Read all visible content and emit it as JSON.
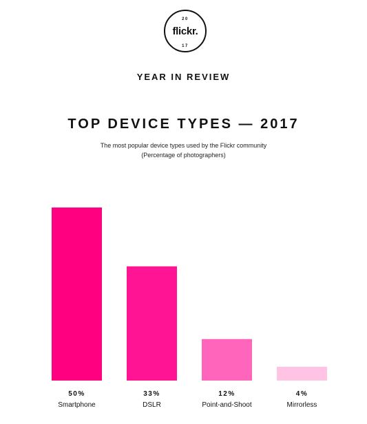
{
  "logo": {
    "year_top": "20",
    "wordmark": "flickr.",
    "year_bottom": "17"
  },
  "header": {
    "eyebrow": "YEAR IN REVIEW",
    "title": "TOP DEVICE TYPES — 2017",
    "subtitle_line1": "The most popular device types used by the Flickr community",
    "subtitle_line2": "(Percentage of photographers)"
  },
  "colors": {
    "background": "#ffffff",
    "text": "#111111",
    "bars": [
      "#ff0080",
      "#ff1493",
      "#ff66bb",
      "#ffc4e4"
    ]
  },
  "chart_data": {
    "type": "bar",
    "title": "TOP DEVICE TYPES — 2017",
    "xlabel": "",
    "ylabel": "",
    "categories": [
      "Smartphone",
      "DSLR",
      "Point-and-Shoot",
      "Mirrorless"
    ],
    "values": [
      50,
      33,
      12,
      4
    ],
    "value_labels": [
      "50%",
      "33%",
      "12%",
      "4%"
    ],
    "ylim": [
      0,
      50
    ],
    "grid": false,
    "legend": "none"
  }
}
